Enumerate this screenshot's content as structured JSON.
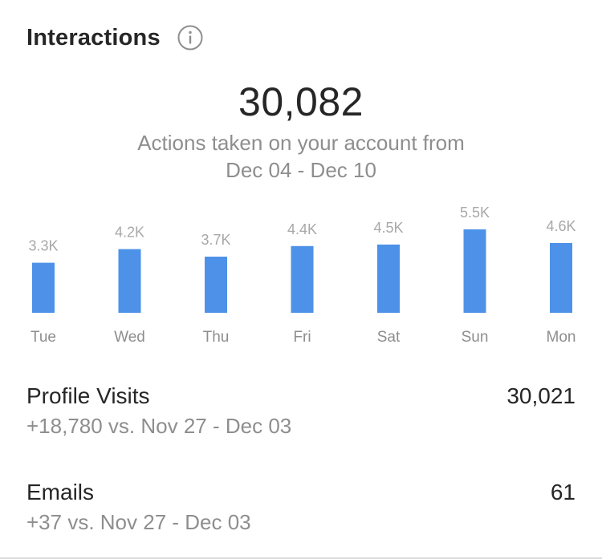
{
  "header": {
    "title": "Interactions",
    "info_icon": "info-circle-icon"
  },
  "summary": {
    "total": "30,082",
    "subtitle_line1": "Actions taken on your account from",
    "subtitle_line2": "Dec 04 - Dec 10"
  },
  "colors": {
    "bar": "#4d92e8",
    "primary_text": "#262626",
    "secondary_text": "#8e8e8e"
  },
  "chart_data": {
    "type": "bar",
    "categories": [
      "Tue",
      "Wed",
      "Thu",
      "Fri",
      "Sat",
      "Sun",
      "Mon"
    ],
    "values": [
      3300,
      4200,
      3700,
      4400,
      4500,
      5500,
      4600
    ],
    "data_labels": [
      "3.3K",
      "4.2K",
      "3.7K",
      "4.4K",
      "4.5K",
      "5.5K",
      "4.6K"
    ],
    "title": "",
    "xlabel": "",
    "ylabel": "",
    "ylim": [
      0,
      5500
    ],
    "grid": false
  },
  "metrics": [
    {
      "name": "Profile Visits",
      "value": "30,021",
      "compare": "+18,780 vs. Nov 27 - Dec 03"
    },
    {
      "name": "Emails",
      "value": "61",
      "compare": "+37 vs. Nov 27 - Dec 03"
    }
  ]
}
